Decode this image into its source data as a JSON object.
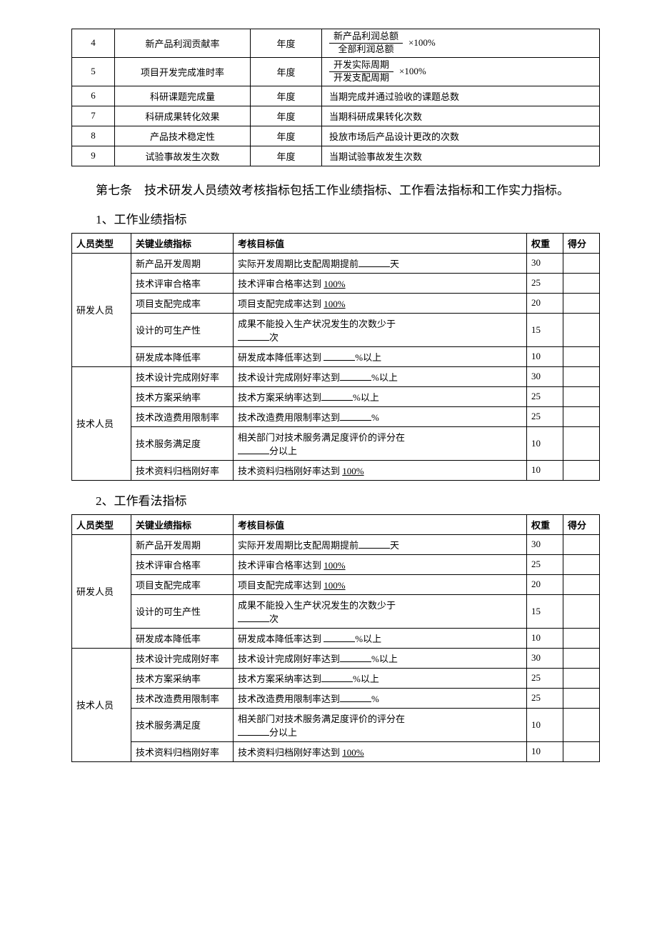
{
  "table1": {
    "rows_formula": [
      {
        "num": "4",
        "name": "新产品利润贡献率",
        "period": "年度",
        "frac_num": "新产品利润总额",
        "frac_den": "全部利润总额",
        "suffix": "×100%"
      },
      {
        "num": "5",
        "name": "项目开发完成准时率",
        "period": "年度",
        "frac_num": "开发实际周期",
        "frac_den": "开发支配周期",
        "suffix": "×100%"
      }
    ],
    "rows_simple": [
      {
        "num": "6",
        "name": "科研课题完成量",
        "period": "年度",
        "desc": "当期完成并通过验收的课题总数"
      },
      {
        "num": "7",
        "name": "科研成果转化效果",
        "period": "年度",
        "desc": "当期科研成果转化次数"
      },
      {
        "num": "8",
        "name": "产品技术稳定性",
        "period": "年度",
        "desc": "投放市场后产品设计更改的次数"
      },
      {
        "num": "9",
        "name": "试验事故发生次数",
        "period": "年度",
        "desc": "当期试验事故发生次数"
      }
    ]
  },
  "para1": "第七条　技术研发人员绩效考核指标包括工作业绩指标、工作看法指标和工作实力指标。",
  "sub1": "1、工作业绩指标",
  "sub2": "2、工作看法指标",
  "table2_header": {
    "c1": "人员类型",
    "c2": "关键业绩指标",
    "c3": "考核目标值",
    "c4": "权重",
    "c5": "得分"
  },
  "table2_groups": [
    {
      "ptype": "研发人员",
      "rows": [
        {
          "kpi": "新产品开发周期",
          "target_pre": "实际开发周期比支配周期提前",
          "blank": "med",
          "target_post": "天",
          "weight": "30"
        },
        {
          "kpi": "技术评审合格率",
          "target_pre": "技术评审合格率达到 ",
          "underline": "100%",
          "weight": "25"
        },
        {
          "kpi": "项目支配完成率",
          "target_pre": "项目支配完成率达到 ",
          "underline": "100%",
          "weight": "20"
        },
        {
          "kpi": "设计的可生产性",
          "target_pre": "成果不能投入生产状况发生的次数少于",
          "blank2_post": "次",
          "two_line": true,
          "weight": "15"
        },
        {
          "kpi": "研发成本降低率",
          "target_pre": "研发成本降低率达到 ",
          "blank": "med",
          "target_post": "%以上",
          "weight": "10"
        }
      ]
    },
    {
      "ptype": "技术人员",
      "rows": [
        {
          "kpi": "技术设计完成刚好率",
          "target_pre": "技术设计完成刚好率达到",
          "blank": "med",
          "target_post": "%以上",
          "weight": "30"
        },
        {
          "kpi": "技术方案采纳率",
          "target_pre": "技术方案采纳率达到",
          "blank": "med",
          "target_post": "%以上",
          "weight": "25"
        },
        {
          "kpi": "技术改造费用限制率",
          "target_pre": "技术改造费用限制率达到",
          "blank": "med",
          "target_post": "%",
          "weight": "25"
        },
        {
          "kpi": "技术服务满足度",
          "target_pre": "相关部门对技术服务满足度评价的评分在",
          "blank": "short",
          "target_post": "分以上",
          "two_line": true,
          "weight": "10"
        },
        {
          "kpi": "技术资料归档刚好率",
          "target_pre": "技术资料归档刚好率达到 ",
          "underline": "100%",
          "weight": "10"
        }
      ]
    }
  ]
}
